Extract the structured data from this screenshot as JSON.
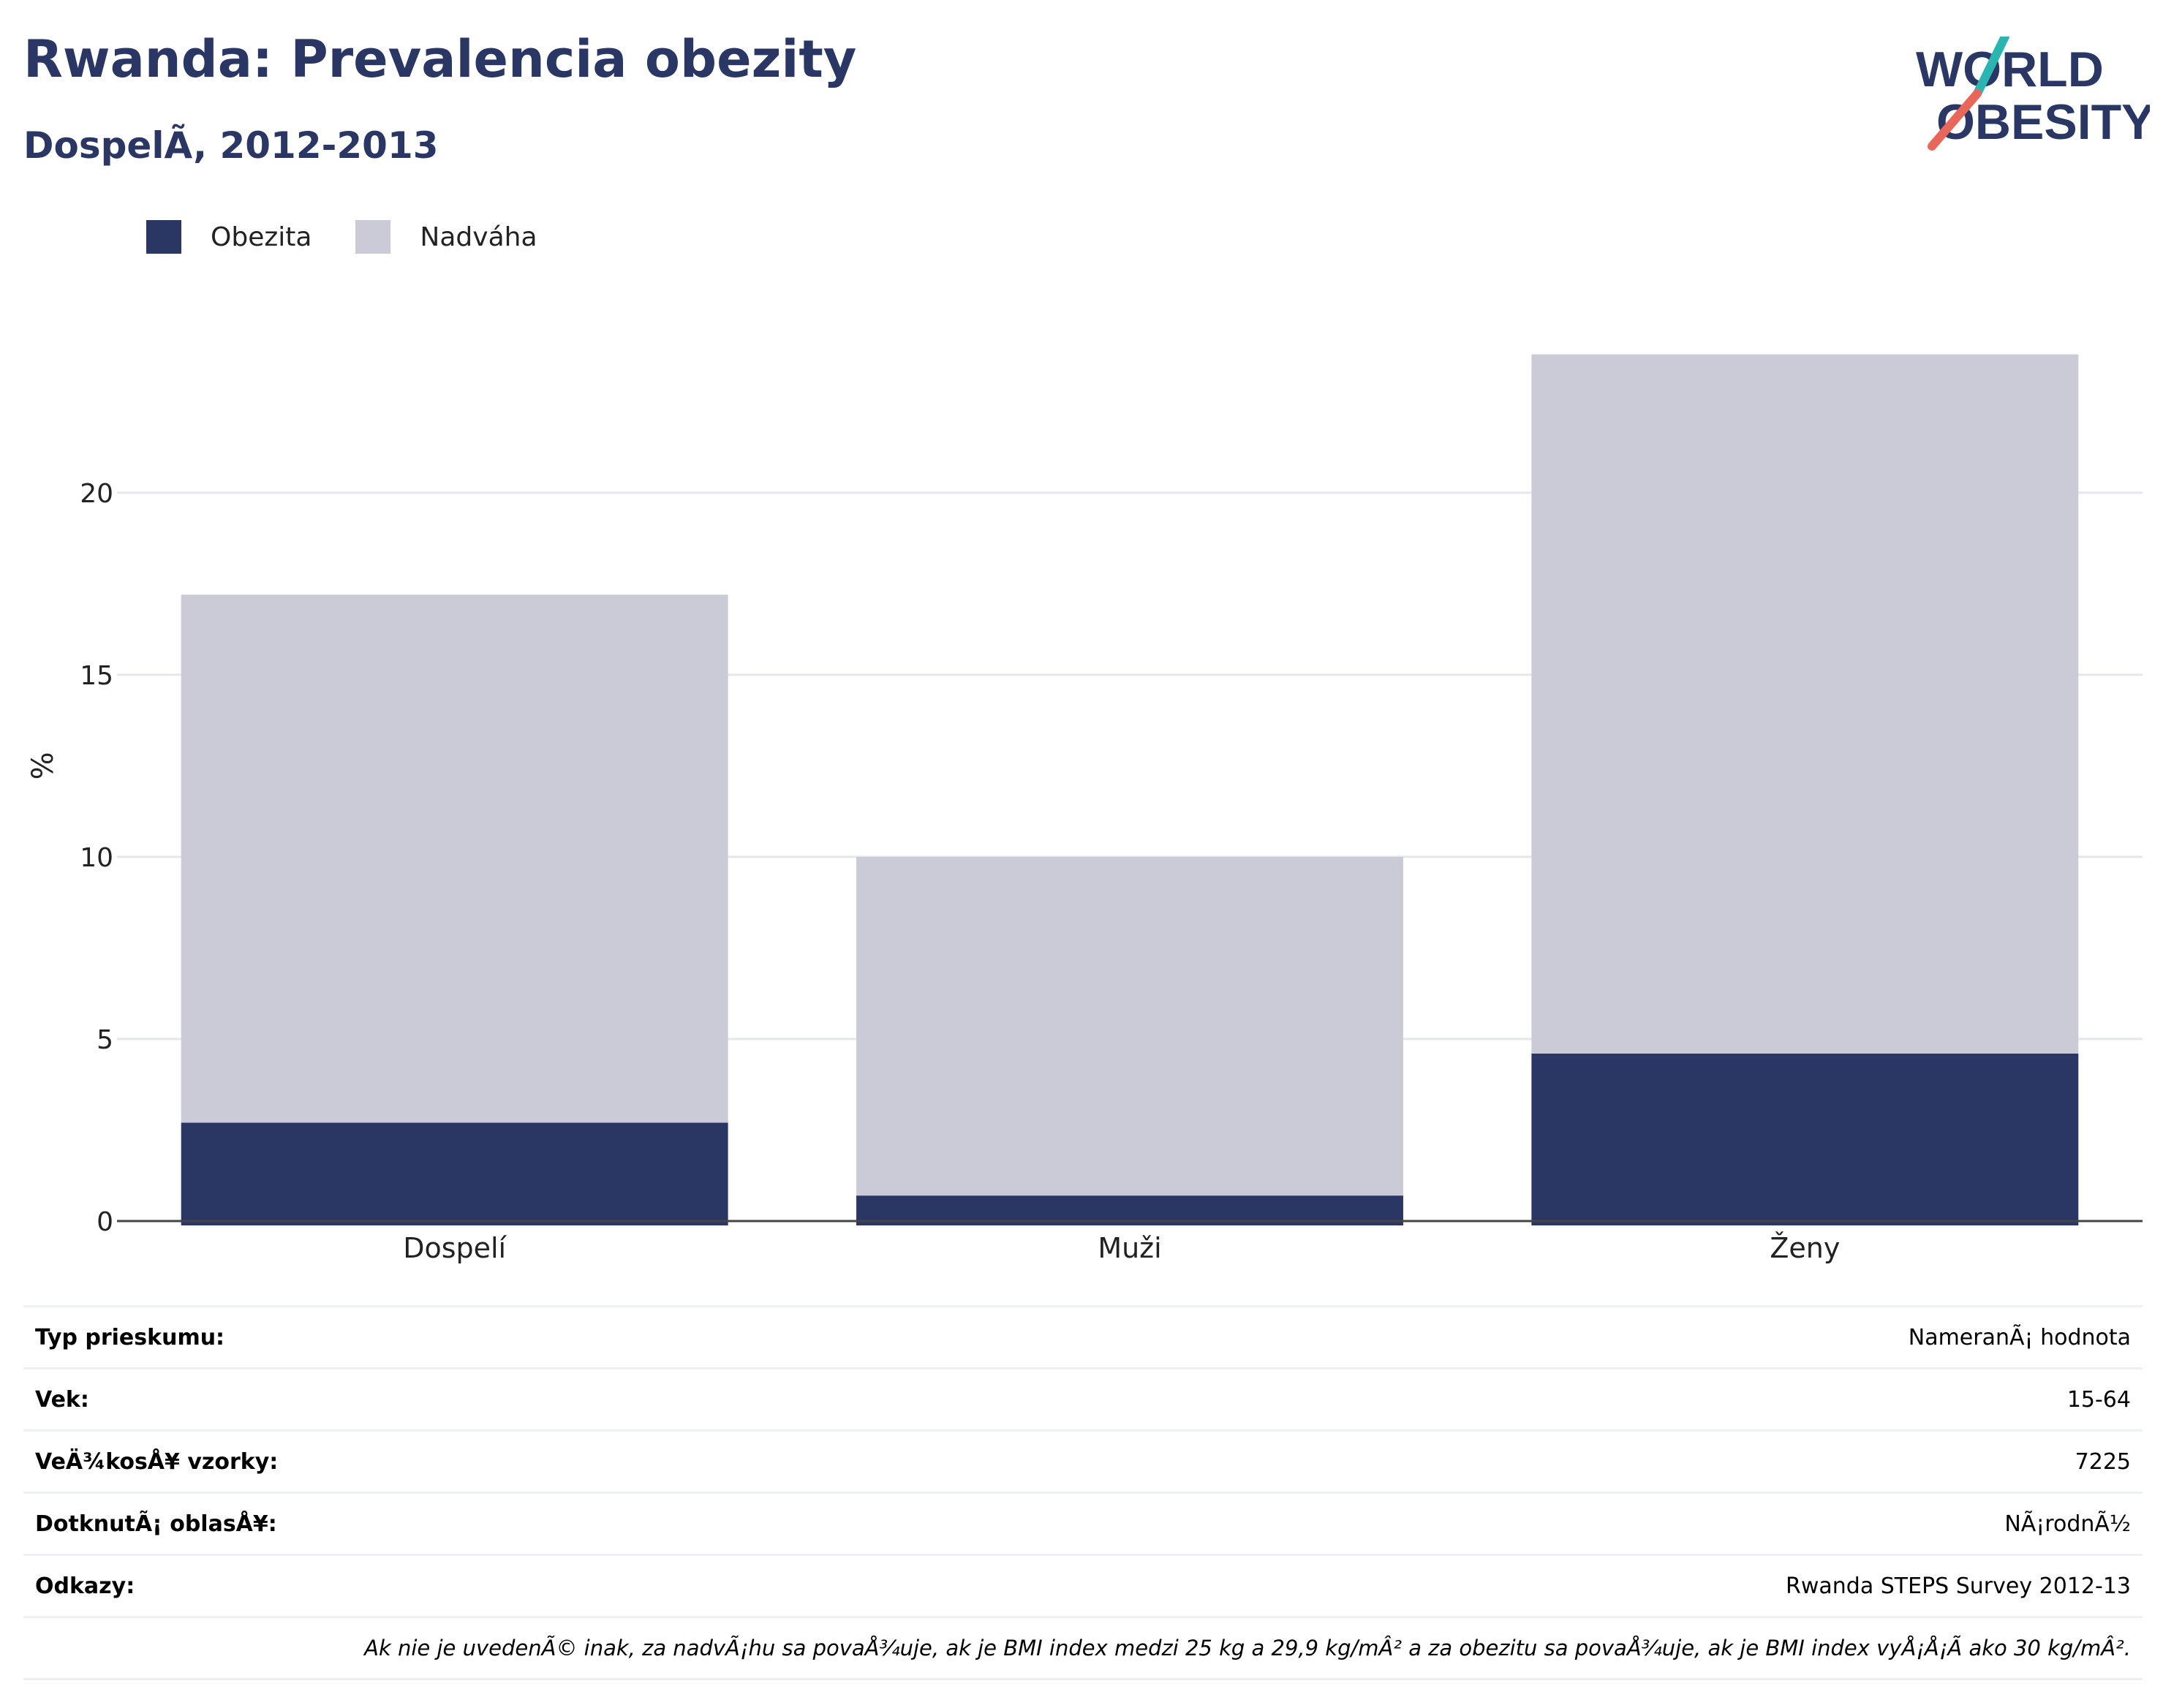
{
  "header": {
    "title": "Rwanda: Prevalencia obezity",
    "subtitle": "DospelÃ, 2012-2013"
  },
  "logo": {
    "line1": "WORLD",
    "line2": "OBESITY",
    "teal": "#2ab5b0",
    "coral": "#e8675a",
    "navy": "#2a3663"
  },
  "legend": [
    {
      "label": "Obezita",
      "color": "#2a3663"
    },
    {
      "label": "Nadváha",
      "color": "#cacbd6"
    }
  ],
  "chart_data": {
    "type": "bar",
    "stacked": true,
    "categories": [
      "Dospelí",
      "Muži",
      "Ženy"
    ],
    "series": [
      {
        "name": "Obezita",
        "color": "#2a3663",
        "values": [
          2.7,
          0.7,
          4.6
        ]
      },
      {
        "name": "Nadváha",
        "color": "#cacbd6",
        "values": [
          14.5,
          9.3,
          19.2
        ]
      }
    ],
    "ylabel": "%",
    "yticks": [
      0,
      5,
      10,
      15,
      20
    ],
    "ylim": [
      0,
      25.9
    ],
    "grid": true
  },
  "info": {
    "rows": [
      {
        "key": "Typ prieskumu:",
        "value": "NameranÃ¡ hodnota"
      },
      {
        "key": "Vek:",
        "value": "15-64"
      },
      {
        "key": "VeÄ¾kosÅ¥ vzorky:",
        "value": "7225"
      },
      {
        "key": "DotknutÃ¡ oblasÅ¥:",
        "value": "NÃ¡rodnÃ½"
      },
      {
        "key": "Odkazy:",
        "value": "Rwanda STEPS Survey 2012-13"
      }
    ],
    "note": "Ak nie je uvedenÃ© inak, za nadvÃ¡hu sa povaÅ¾uje, ak je BMI index medzi 25 kg a 29,9 kg/mÂ² a za obezitu sa povaÅ¾uje, ak je BMI index vyÅ¡Å¡Ã ako 30 kg/mÂ²."
  }
}
